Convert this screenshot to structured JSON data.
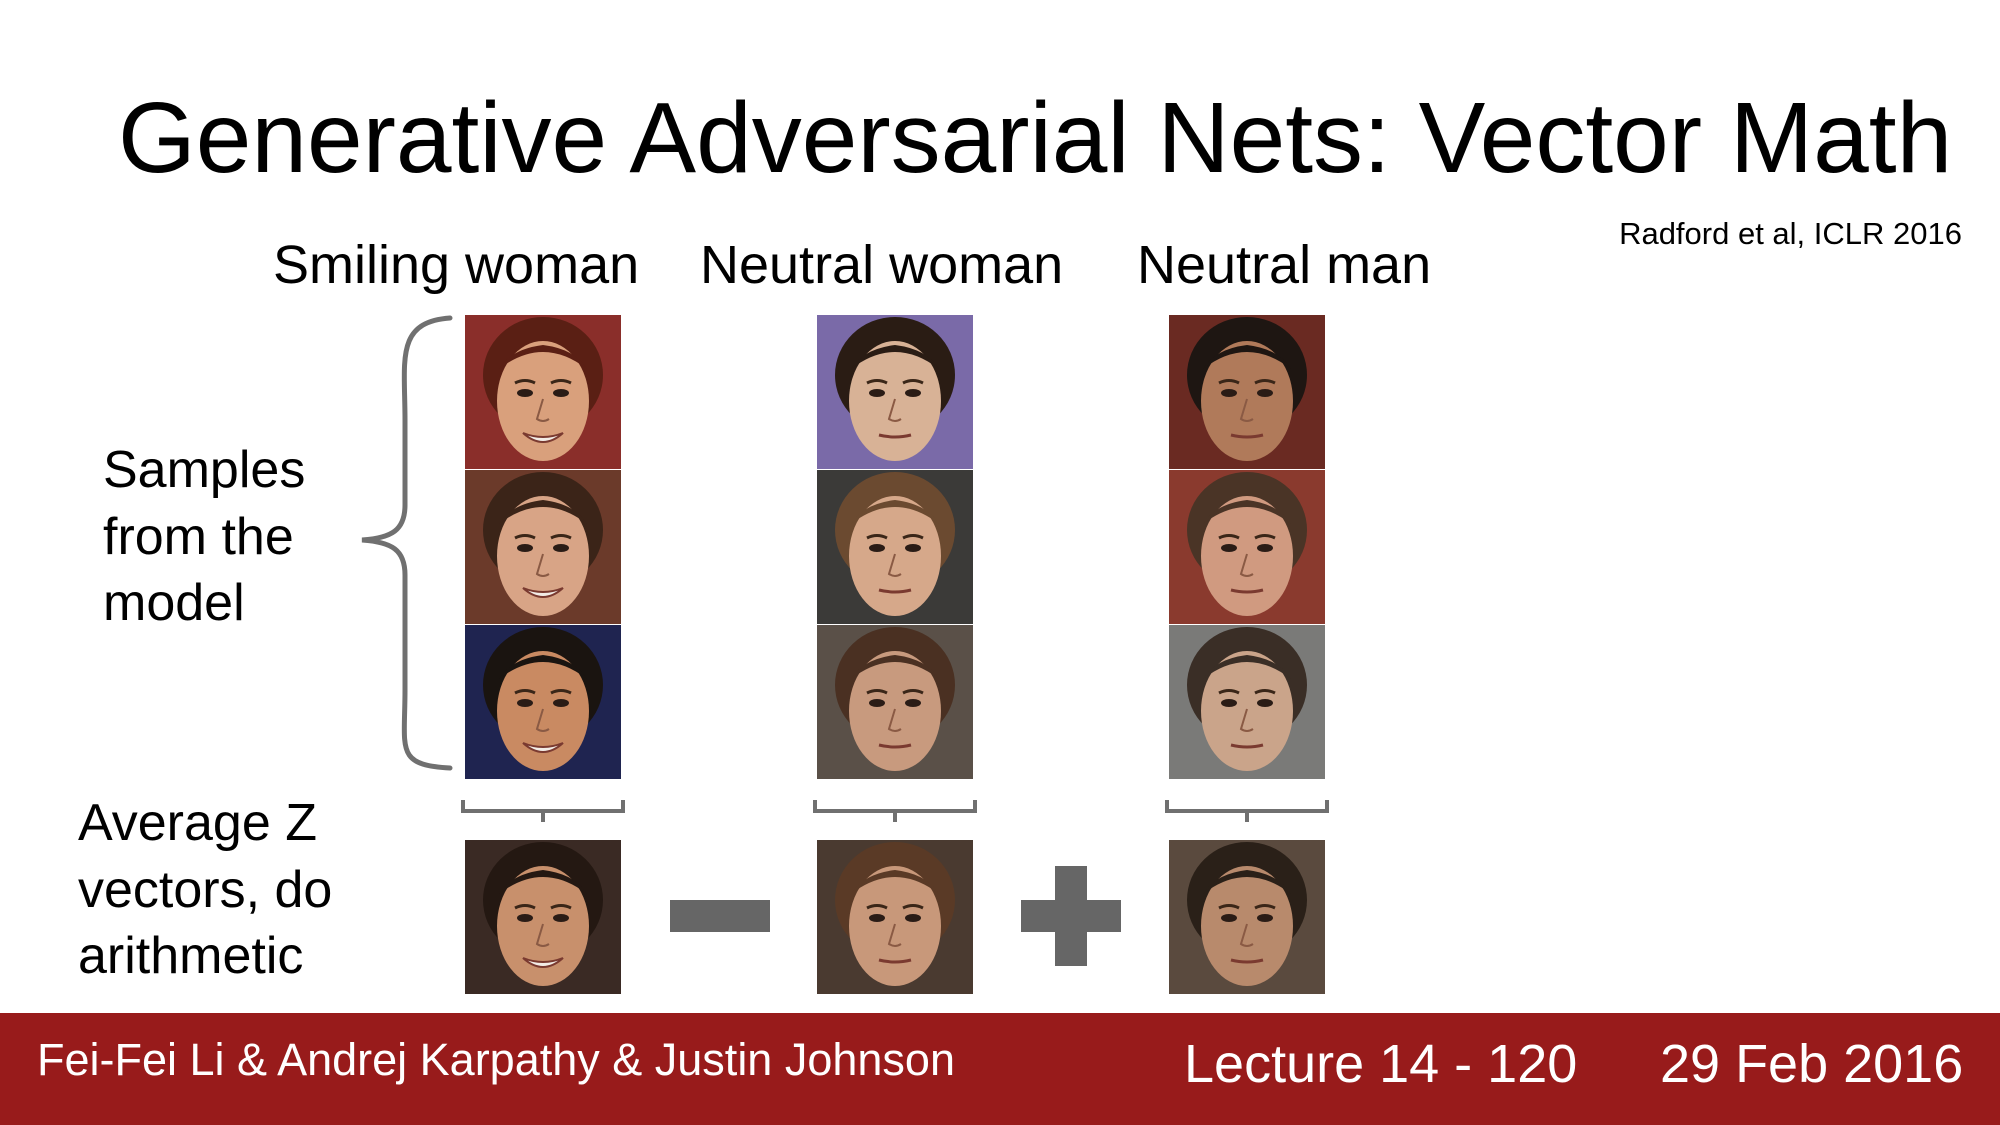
{
  "slide": {
    "title": "Generative Adversarial Nets: Vector Math",
    "citation": "Radford et al, ICLR 2016",
    "columns": [
      {
        "label": "Smiling woman"
      },
      {
        "label": "Neutral woman"
      },
      {
        "label": "Neutral man"
      }
    ],
    "samples_label": "Samples\nfrom the\nmodel",
    "average_label": "Average Z\nvectors, do\narithmetic",
    "operators": [
      "minus",
      "plus"
    ]
  },
  "footer": {
    "authors": "Fei-Fei Li & Andrej Karpathy & Justin Johnson",
    "lecture": "Lecture 14 - 120",
    "date": "29 Feb 2016"
  },
  "colors": {
    "footer_bg": "#981b1b",
    "operator": "#666666",
    "brace": "#707070"
  }
}
